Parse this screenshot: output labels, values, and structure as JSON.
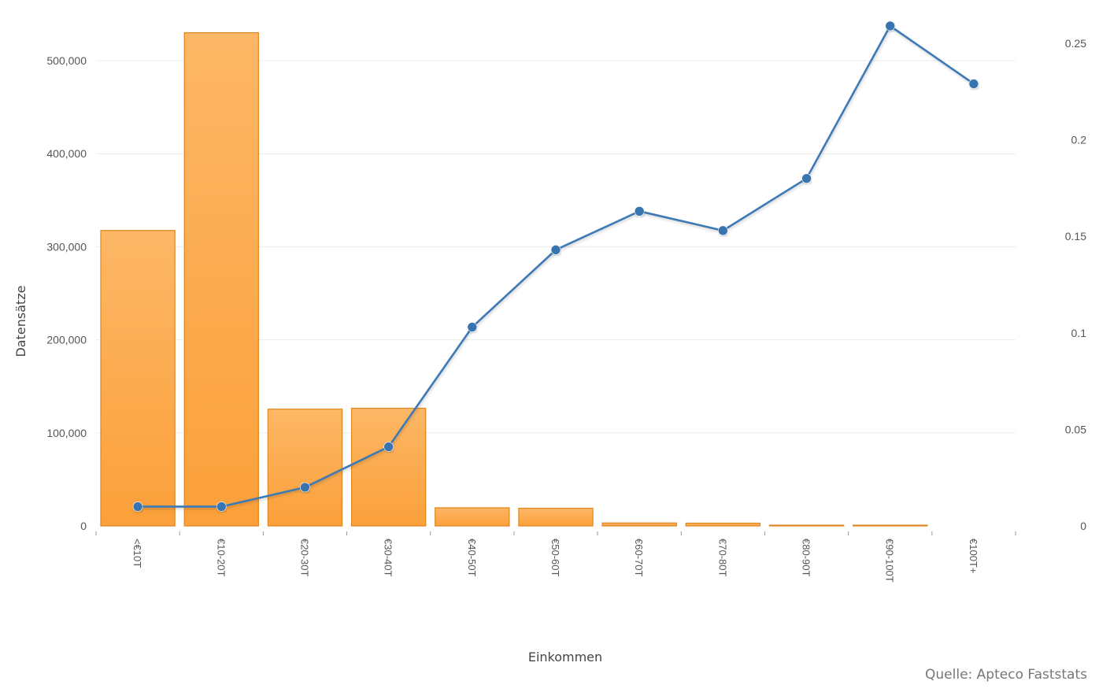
{
  "chart_data": {
    "type": "bar",
    "categories": [
      "<€10T",
      "€10-20T",
      "€20-30T",
      "€30-40T",
      "€40-50T",
      "€50-60T",
      "€60-70T",
      "€70-80T",
      "€80-90T",
      "€90-100T",
      "€100T+"
    ],
    "series": [
      {
        "type": "bar",
        "axis": "left",
        "values": [
          317500,
          530000,
          125500,
          126500,
          19500,
          19000,
          3200,
          3000,
          600,
          300,
          0
        ]
      },
      {
        "type": "line",
        "axis": "right",
        "values": [
          0.01,
          0.01,
          0.02,
          0.041,
          0.103,
          0.143,
          0.163,
          0.153,
          0.18,
          0.259,
          0.229
        ]
      }
    ],
    "xlabel": "Einkommen",
    "ylabel": "Datensätze",
    "ylim": [
      0,
      500000
    ],
    "y_ticks": [
      "0",
      "100,000",
      "200,000",
      "300,000",
      "400,000",
      "500,000"
    ],
    "y2lim": [
      0,
      0.25
    ],
    "y2_ticks": [
      "0",
      "0.05",
      "0.1",
      "0.15",
      "0.2",
      "0.25"
    ],
    "grid": true,
    "source": "Quelle: Apteco Faststats",
    "colors": {
      "bar_top": "#fdb766",
      "bar_bottom": "#fba03a",
      "bar_stroke": "#e0861f",
      "line": "#3d7ab5",
      "marker": "#3874b0",
      "grid": "#ececec"
    }
  }
}
